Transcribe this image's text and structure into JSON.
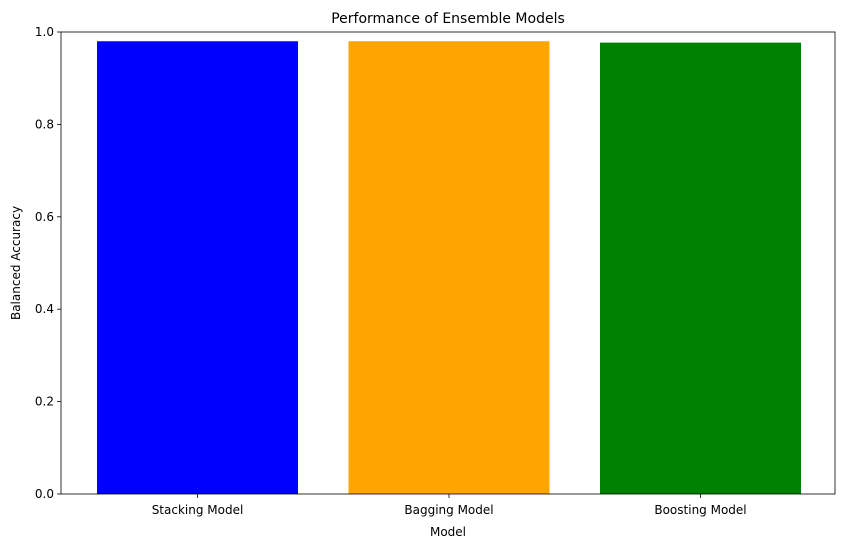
{
  "chart_data": {
    "type": "bar",
    "title": "Performance of Ensemble Models",
    "xlabel": "Model",
    "ylabel": "Balanced Accuracy",
    "categories": [
      "Stacking Model",
      "Bagging Model",
      "Boosting Model"
    ],
    "values": [
      0.98,
      0.98,
      0.977
    ],
    "colors": [
      "#0000ff",
      "#ffa500",
      "#008000"
    ],
    "ylim": [
      0,
      1.0
    ],
    "yticks": [
      "0.0",
      "0.2",
      "0.4",
      "0.6",
      "0.8",
      "1.0"
    ],
    "grid": false,
    "legend": "none"
  }
}
